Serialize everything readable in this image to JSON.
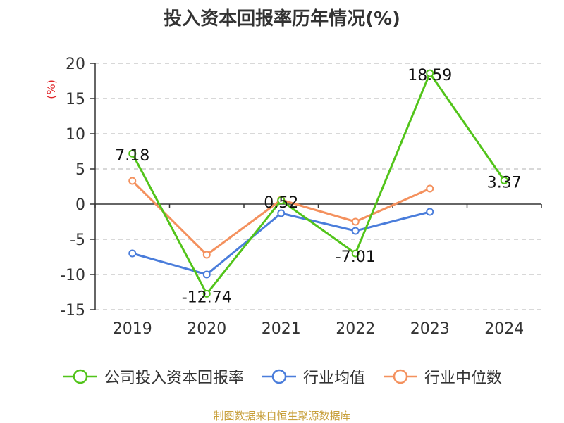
{
  "chart_data": {
    "type": "line",
    "title": "投入资本回报率历年情况(%)",
    "ylabel": "(%)",
    "xlabel": "",
    "categories": [
      "2019",
      "2020",
      "2021",
      "2022",
      "2023",
      "2024"
    ],
    "yticks": [
      "20",
      "15",
      "10",
      "5",
      "0",
      "-5",
      "-10",
      "-15"
    ],
    "ylim": [
      -15,
      20
    ],
    "grid": true,
    "legend_position": "bottom",
    "series": [
      {
        "name": "公司投入资本回报率",
        "color": "#52c41a",
        "values": [
          7.18,
          -12.74,
          0.52,
          -7.01,
          18.59,
          3.37
        ],
        "labels": [
          "7.18",
          "-12.74",
          "0.52",
          "-7.01",
          "18.59",
          "3.37"
        ]
      },
      {
        "name": "行业均值",
        "color": "#4a7ddb",
        "values": [
          -7.0,
          -10.0,
          -1.3,
          -3.8,
          -1.1,
          null
        ]
      },
      {
        "name": "行业中位数",
        "color": "#f4915e",
        "values": [
          3.3,
          -7.2,
          0.6,
          -2.5,
          2.2,
          null
        ]
      }
    ],
    "source": "制图数据来自恒生聚源数据库"
  }
}
